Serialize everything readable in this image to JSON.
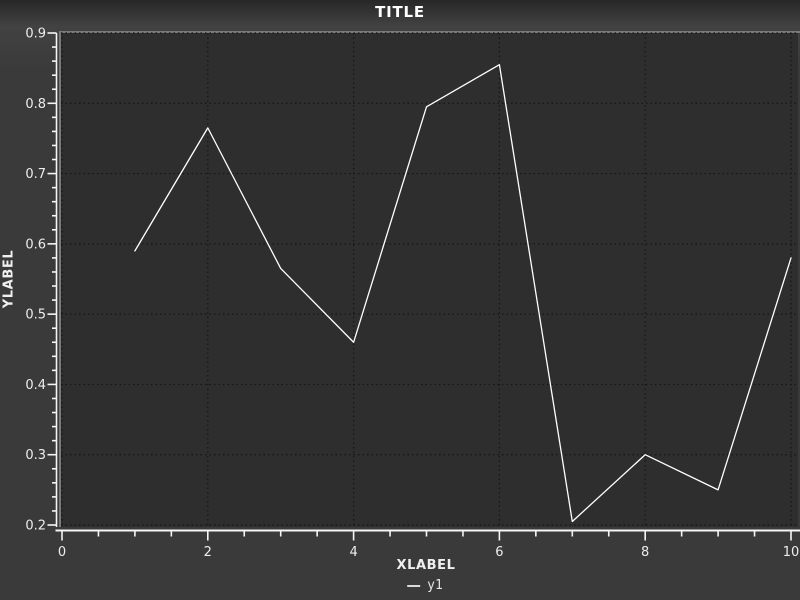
{
  "colors": {
    "page_background": "#3a3a3a",
    "header_gradient_top": "#272727",
    "plot_background": "#2e2e2e",
    "frame": "#7a7a7a",
    "grid": "#151515",
    "axis": "#f5f5f5",
    "tick_label": "#ececec",
    "series_line": "#ffffff",
    "legend_dash": "#d9d9d9"
  },
  "chart_data": {
    "type": "line",
    "title": "TITLE",
    "xlabel": "XLABEL",
    "ylabel": "YLABEL",
    "x": [
      1,
      2,
      3,
      4,
      5,
      6,
      7,
      8,
      9,
      10
    ],
    "series": [
      {
        "name": "y1",
        "color": "#ffffff",
        "values": [
          0.59,
          0.765,
          0.565,
          0.46,
          0.795,
          0.855,
          0.205,
          0.3,
          0.25,
          0.58
        ]
      }
    ],
    "xlim": [
      0,
      10
    ],
    "ylim": [
      0.2,
      0.9
    ],
    "x_major_ticks": [
      0,
      2,
      4,
      6,
      8,
      10
    ],
    "x_tick_labels": [
      "0",
      "2",
      "4",
      "6",
      "8",
      "10"
    ],
    "x_minor_step": 0.5,
    "y_major_ticks": [
      0.2,
      0.3,
      0.4,
      0.5,
      0.6,
      0.7,
      0.8,
      0.9
    ],
    "y_tick_labels": [
      "0.2",
      "0.3",
      "0.4",
      "0.5",
      "0.6",
      "0.7",
      "0.8",
      "0.9"
    ],
    "y_minor_step": 0.02,
    "grid": "dotted lines at major ticks, both axes",
    "legend": {
      "position": "bottom-center",
      "entries": [
        {
          "label": "y1",
          "marker": "line"
        }
      ]
    }
  }
}
